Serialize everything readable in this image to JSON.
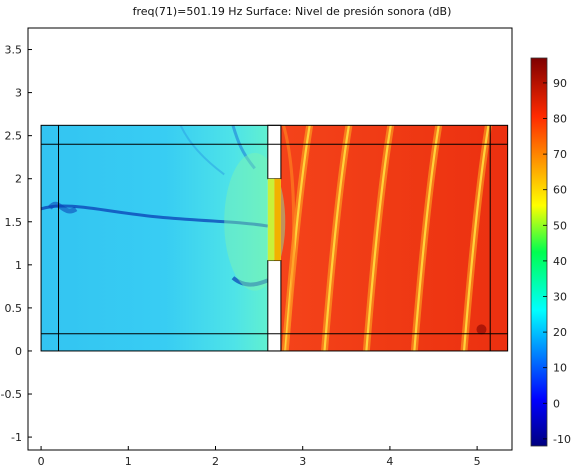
{
  "chart_data": {
    "type": "heatmap",
    "title": "freq(71)=501.19 Hz   Surface: Nivel de presión sonora (dB)",
    "xlim": [
      -0.15,
      5.4
    ],
    "ylim": [
      -1.15,
      3.75
    ],
    "x_ticks": [
      "0",
      "1",
      "2",
      "3",
      "4",
      "5"
    ],
    "y_ticks": [
      "-1",
      "-0.5",
      "0",
      "0.5",
      "1",
      "1.5",
      "2",
      "2.5",
      "3",
      "3.5"
    ],
    "grid": false,
    "colorbar": {
      "ticks": [
        "90",
        "80",
        "70",
        "60",
        "50",
        "40",
        "30",
        "20",
        "10",
        "0",
        "-10"
      ],
      "range": [
        -12,
        97
      ],
      "colormap": "jet"
    },
    "domain": {
      "rect": [
        0,
        0,
        5.35,
        2.62
      ],
      "inner_lines": {
        "x": [
          0.2,
          5.15
        ],
        "y": [
          0.2,
          2.4
        ]
      },
      "wall": {
        "x": [
          2.6,
          2.75
        ],
        "openings": [
          {
            "y": [
              1.05,
              2.0
            ]
          }
        ]
      },
      "left_region_level_db": 30,
      "right_region_level_db": 80,
      "nodal_lines_right_x": [
        3.0,
        3.45,
        3.93,
        4.48,
        5.05
      ]
    }
  },
  "colors": {
    "left_region": "#2dc1ee",
    "right_region": "#f03a12",
    "nodal_line": "#ffd23a",
    "dark_node": "#0a3fb5",
    "frame": "#000000"
  }
}
